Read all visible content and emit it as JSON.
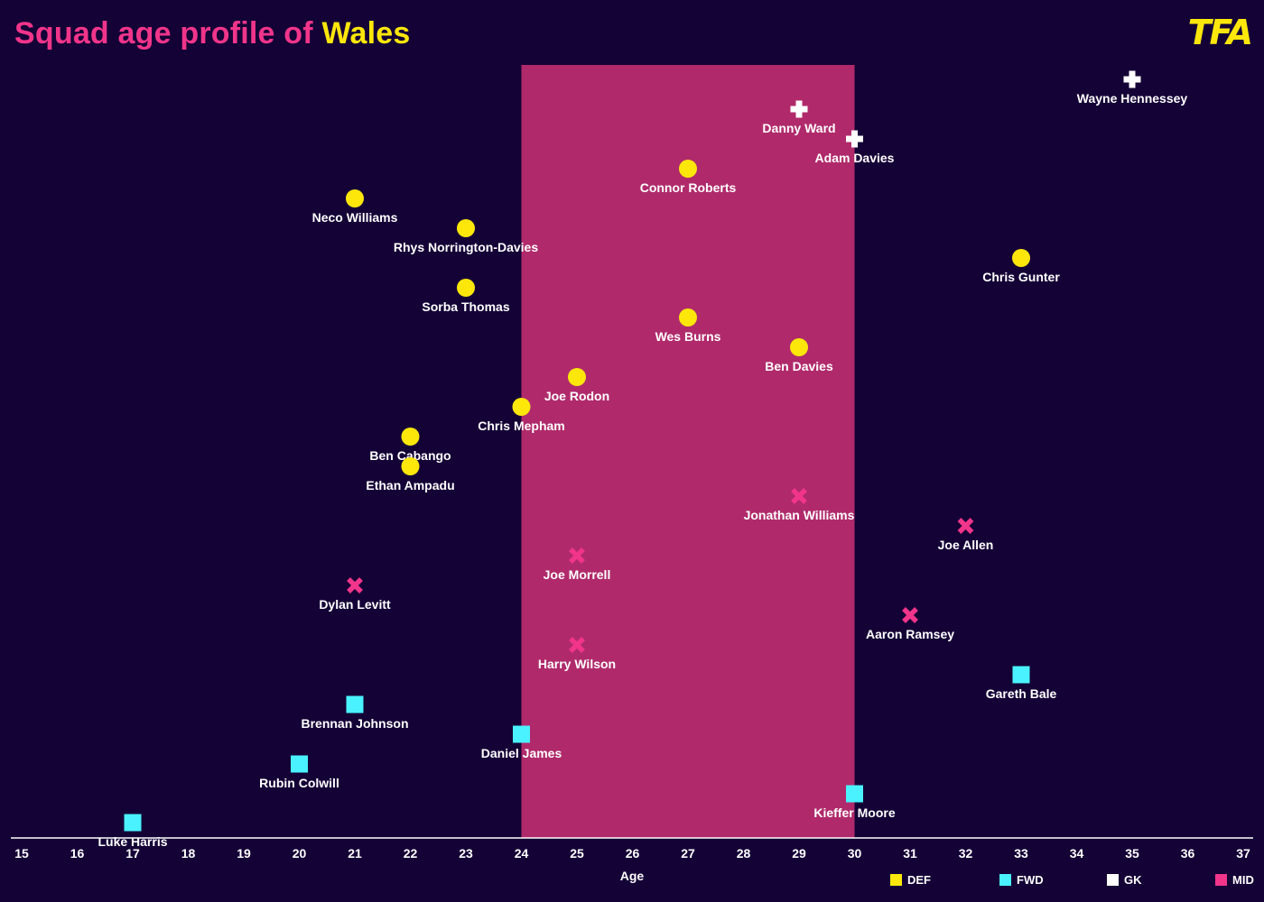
{
  "title": {
    "prefix": "Squad age profile of",
    "team": "Wales"
  },
  "logo": "TFA",
  "colors": {
    "background": "#140236",
    "DEF": "#fde70b",
    "FWD": "#4af2ff",
    "GK": "#ffffff",
    "MID": "#f0358a",
    "peak_band": "#b02a6b",
    "title": "#f0358a",
    "team": "#fde70b"
  },
  "chart_data": {
    "type": "scatter",
    "title": "Squad age profile of Wales",
    "xlabel": "Age",
    "ylabel": "",
    "xlim": [
      15,
      37
    ],
    "xticks": [
      15,
      16,
      17,
      18,
      19,
      20,
      21,
      22,
      23,
      24,
      25,
      26,
      27,
      28,
      29,
      30,
      31,
      32,
      33,
      34,
      35,
      36,
      37
    ],
    "highlight_range": [
      24,
      30
    ],
    "grid": false,
    "legend": [
      {
        "position": "DEF",
        "marker": "circle"
      },
      {
        "position": "FWD",
        "marker": "square"
      },
      {
        "position": "GK",
        "marker": "plus"
      },
      {
        "position": "MID",
        "marker": "x"
      }
    ],
    "legend_placement": "bottom-right",
    "players": [
      {
        "name": "Wayne Hennessey",
        "age": 35,
        "position": "GK"
      },
      {
        "name": "Danny Ward",
        "age": 29,
        "position": "GK"
      },
      {
        "name": "Adam Davies",
        "age": 30,
        "position": "GK"
      },
      {
        "name": "Connor Roberts",
        "age": 27,
        "position": "DEF"
      },
      {
        "name": "Neco Williams",
        "age": 21,
        "position": "DEF"
      },
      {
        "name": "Rhys Norrington-Davies",
        "age": 23,
        "position": "DEF"
      },
      {
        "name": "Chris Gunter",
        "age": 33,
        "position": "DEF"
      },
      {
        "name": "Sorba Thomas",
        "age": 23,
        "position": "DEF"
      },
      {
        "name": "Wes Burns",
        "age": 27,
        "position": "DEF"
      },
      {
        "name": "Ben Davies",
        "age": 29,
        "position": "DEF"
      },
      {
        "name": "Joe Rodon",
        "age": 25,
        "position": "DEF"
      },
      {
        "name": "Chris Mepham",
        "age": 24,
        "position": "DEF"
      },
      {
        "name": "Ben Cabango",
        "age": 22,
        "position": "DEF"
      },
      {
        "name": "Ethan Ampadu",
        "age": 22,
        "position": "DEF"
      },
      {
        "name": "Jonathan Williams",
        "age": 29,
        "position": "MID"
      },
      {
        "name": "Joe Allen",
        "age": 32,
        "position": "MID"
      },
      {
        "name": "Joe Morrell",
        "age": 25,
        "position": "MID"
      },
      {
        "name": "Dylan Levitt",
        "age": 21,
        "position": "MID"
      },
      {
        "name": "Aaron Ramsey",
        "age": 31,
        "position": "MID"
      },
      {
        "name": "Harry Wilson",
        "age": 25,
        "position": "MID"
      },
      {
        "name": "Gareth Bale",
        "age": 33,
        "position": "FWD"
      },
      {
        "name": "Brennan Johnson",
        "age": 21,
        "position": "FWD"
      },
      {
        "name": "Daniel James",
        "age": 24,
        "position": "FWD"
      },
      {
        "name": "Rubin Colwill",
        "age": 20,
        "position": "FWD"
      },
      {
        "name": "Kieffer Moore",
        "age": 30,
        "position": "FWD"
      },
      {
        "name": "Luke Harris",
        "age": 17,
        "position": "FWD"
      }
    ]
  }
}
